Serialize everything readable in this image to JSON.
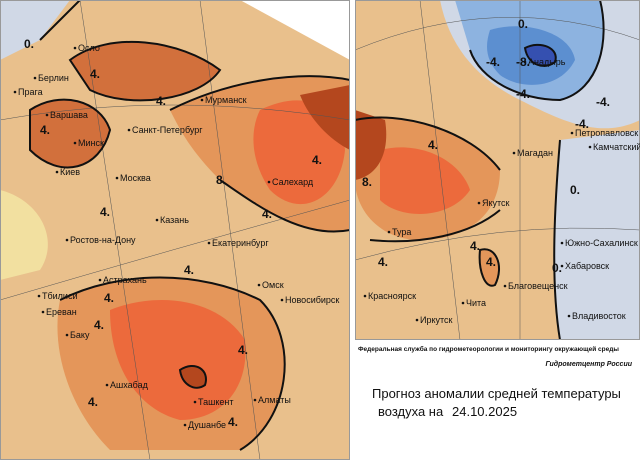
{
  "left_map": {
    "cities": [
      "Осло",
      "Берлин",
      "Прага",
      "Варшава",
      "Минск",
      "Киев",
      "Санкт-Петербург",
      "Мурманск",
      "Москва",
      "Салехард",
      "Казань",
      "Ростов-на-Дону",
      "Екатеринбург",
      "Астрахань",
      "Омск",
      "Новосибирск",
      "Тбилиси",
      "Ереван",
      "Баку",
      "Ашхабад",
      "Ташкент",
      "Алматы",
      "Душанбе"
    ],
    "contour_labels": [
      "0.",
      "4.",
      "4.",
      "4.",
      "4.",
      "8.",
      "4.",
      "4.",
      "4.",
      "4.",
      "4.",
      "4.",
      "4.",
      "4."
    ]
  },
  "right_map": {
    "cities": [
      "Анадырь",
      "Петропавловск",
      "Камчатский",
      "Магадан",
      "Якутск",
      "Тура",
      "Южно-Сахалинск",
      "Хабаровск",
      "Благовещенск",
      "Красноярск",
      "Чита",
      "Иркутск",
      "Владивосток"
    ],
    "contour_labels": [
      "0.",
      "-4.",
      "-8.",
      "-4.",
      "-4.",
      "-4.",
      "4.",
      "8.",
      "0.",
      "4.",
      "4.",
      "0.",
      "4."
    ]
  },
  "agency": "Федеральная служба по гидрометеорологии и мониторингу окружающей среды",
  "center": "Гидрометцентр России",
  "title_line1": "Прогноз аномалии средней температуры",
  "title_line2": "воздуха на",
  "date": "24.10.2025"
}
